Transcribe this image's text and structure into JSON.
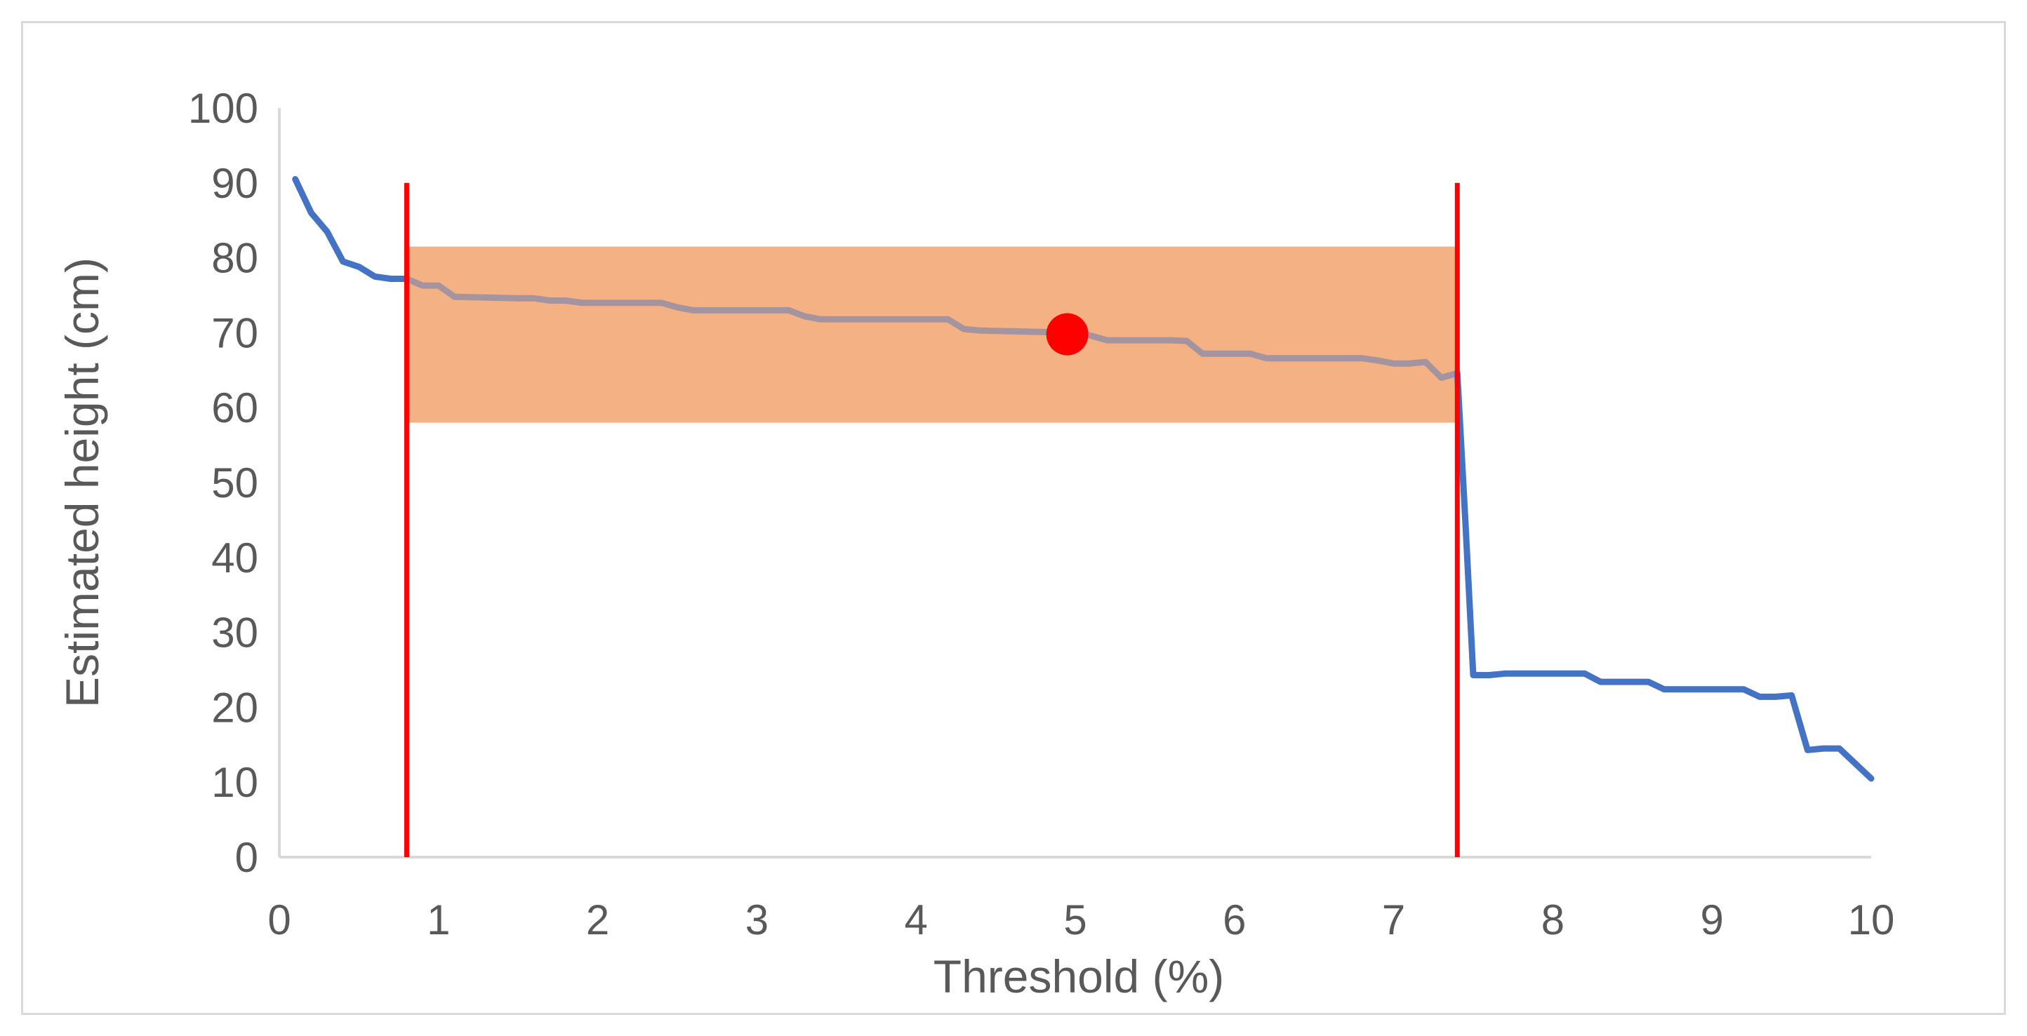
{
  "chart_data": {
    "type": "line",
    "xlabel": "Threshold (%)",
    "ylabel": "Estimated height (cm)",
    "xlim": [
      0,
      10
    ],
    "ylim": [
      0,
      100
    ],
    "x_ticks": [
      0,
      1,
      2,
      3,
      4,
      5,
      6,
      7,
      8,
      9,
      10
    ],
    "y_ticks": [
      0,
      10,
      20,
      30,
      40,
      50,
      60,
      70,
      80,
      90,
      100
    ],
    "grid": false,
    "legend": "none",
    "series": [
      {
        "color": "#4472c4",
        "points": [
          [
            0.1,
            90.5
          ],
          [
            0.2,
            86.0
          ],
          [
            0.3,
            83.5
          ],
          [
            0.4,
            79.5
          ],
          [
            0.5,
            78.8
          ],
          [
            0.6,
            77.5
          ],
          [
            0.7,
            77.2
          ],
          [
            0.8,
            77.2
          ],
          [
            0.9,
            76.3
          ],
          [
            1.0,
            76.3
          ],
          [
            1.1,
            74.8
          ],
          [
            1.5,
            74.6
          ],
          [
            1.6,
            74.6
          ],
          [
            1.7,
            74.3
          ],
          [
            1.8,
            74.3
          ],
          [
            1.9,
            74.0
          ],
          [
            2.4,
            74.0
          ],
          [
            2.5,
            73.4
          ],
          [
            2.6,
            73.0
          ],
          [
            3.2,
            73.0
          ],
          [
            3.3,
            72.2
          ],
          [
            3.4,
            71.8
          ],
          [
            4.2,
            71.8
          ],
          [
            4.3,
            70.5
          ],
          [
            4.4,
            70.3
          ],
          [
            5.0,
            70.0
          ],
          [
            5.1,
            69.6
          ],
          [
            5.2,
            69.0
          ],
          [
            5.6,
            69.0
          ],
          [
            5.7,
            68.9
          ],
          [
            5.8,
            67.2
          ],
          [
            6.1,
            67.2
          ],
          [
            6.2,
            66.6
          ],
          [
            6.8,
            66.6
          ],
          [
            6.9,
            66.3
          ],
          [
            7.0,
            65.9
          ],
          [
            7.1,
            65.9
          ],
          [
            7.2,
            66.1
          ],
          [
            7.3,
            64.0
          ],
          [
            7.4,
            64.6
          ],
          [
            7.45,
            45.0
          ],
          [
            7.5,
            24.3
          ],
          [
            7.6,
            24.3
          ],
          [
            7.7,
            24.5
          ],
          [
            8.1,
            24.5
          ],
          [
            8.2,
            24.5
          ],
          [
            8.3,
            23.4
          ],
          [
            8.4,
            23.4
          ],
          [
            8.6,
            23.4
          ],
          [
            8.7,
            22.4
          ],
          [
            9.2,
            22.4
          ],
          [
            9.3,
            21.4
          ],
          [
            9.4,
            21.4
          ],
          [
            9.5,
            21.6
          ],
          [
            9.6,
            14.3
          ],
          [
            9.7,
            14.5
          ],
          [
            9.8,
            14.5
          ],
          [
            9.9,
            12.5
          ],
          [
            10.0,
            10.5
          ]
        ]
      }
    ],
    "annotations": {
      "band": {
        "x_from": 0.8,
        "x_to": 7.4,
        "y_from": 58.0,
        "y_to": 81.5,
        "color": "#f4b183"
      },
      "vertical_lines": [
        {
          "x": 0.8,
          "y_from": 0,
          "y_to": 90,
          "color": "#ff0000"
        },
        {
          "x": 7.4,
          "y_from": 0,
          "y_to": 90,
          "color": "#ff0000"
        }
      ],
      "marker": {
        "x": 4.95,
        "y": 69.8,
        "color": "#ff0000"
      }
    }
  }
}
